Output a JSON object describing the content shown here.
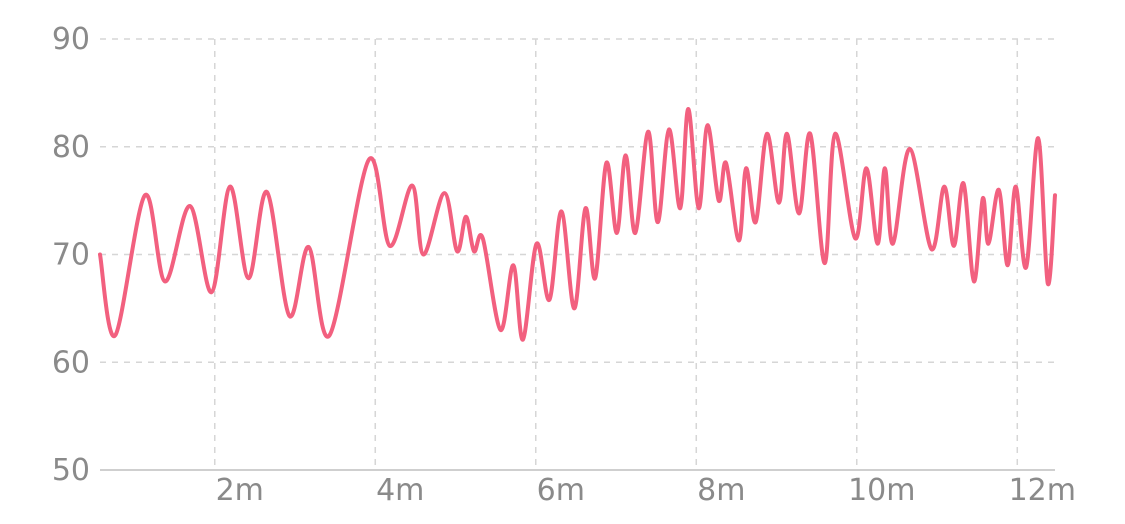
{
  "colors": {
    "series": "#f2607f",
    "grid": "#d6d6d6",
    "axis": "#cfcfcf",
    "tick_text": "#8a8a8a",
    "background": "#ffffff"
  },
  "chart_data": {
    "type": "line",
    "title": "",
    "xlabel": "",
    "ylabel": "",
    "x_unit": "minutes",
    "xlim": [
      0.57,
      12.47
    ],
    "ylim": [
      50,
      90
    ],
    "x_ticks": [
      {
        "value": 2,
        "label": "2m"
      },
      {
        "value": 4,
        "label": "4m"
      },
      {
        "value": 6,
        "label": "6m"
      },
      {
        "value": 8,
        "label": "8m"
      },
      {
        "value": 10,
        "label": "10m"
      },
      {
        "value": 12,
        "label": "12m"
      }
    ],
    "y_ticks": [
      {
        "value": 50,
        "label": "50"
      },
      {
        "value": 60,
        "label": "60"
      },
      {
        "value": 70,
        "label": "70"
      },
      {
        "value": 80,
        "label": "80"
      },
      {
        "value": 90,
        "label": "90"
      }
    ],
    "grid": true,
    "legend": "none",
    "series": [
      {
        "color": "#f2607f",
        "points": [
          [
            0.57,
            70.0
          ],
          [
            0.76,
            62.5
          ],
          [
            1.13,
            75.5
          ],
          [
            1.38,
            67.5
          ],
          [
            1.69,
            74.5
          ],
          [
            1.96,
            66.5
          ],
          [
            2.19,
            76.3
          ],
          [
            2.42,
            67.8
          ],
          [
            2.65,
            75.8
          ],
          [
            2.93,
            64.3
          ],
          [
            3.17,
            70.7
          ],
          [
            3.43,
            62.5
          ],
          [
            3.92,
            78.8
          ],
          [
            4.18,
            70.8
          ],
          [
            4.46,
            76.4
          ],
          [
            4.6,
            70.0
          ],
          [
            4.86,
            75.7
          ],
          [
            5.02,
            70.3
          ],
          [
            5.13,
            73.5
          ],
          [
            5.23,
            70.3
          ],
          [
            5.34,
            71.5
          ],
          [
            5.56,
            63.0
          ],
          [
            5.72,
            69.0
          ],
          [
            5.84,
            62.1
          ],
          [
            6.01,
            71.0
          ],
          [
            6.17,
            65.8
          ],
          [
            6.32,
            74.0
          ],
          [
            6.48,
            65.0
          ],
          [
            6.62,
            74.3
          ],
          [
            6.74,
            67.8
          ],
          [
            6.88,
            78.5
          ],
          [
            7.01,
            72.0
          ],
          [
            7.12,
            79.2
          ],
          [
            7.24,
            72.0
          ],
          [
            7.4,
            81.4
          ],
          [
            7.52,
            73.0
          ],
          [
            7.66,
            81.6
          ],
          [
            7.8,
            74.3
          ],
          [
            7.9,
            83.5
          ],
          [
            8.03,
            74.3
          ],
          [
            8.14,
            82.0
          ],
          [
            8.28,
            75.0
          ],
          [
            8.37,
            78.5
          ],
          [
            8.53,
            71.3
          ],
          [
            8.62,
            78.0
          ],
          [
            8.74,
            73.0
          ],
          [
            8.88,
            81.2
          ],
          [
            9.03,
            74.8
          ],
          [
            9.13,
            81.2
          ],
          [
            9.28,
            73.8
          ],
          [
            9.42,
            81.2
          ],
          [
            9.6,
            69.2
          ],
          [
            9.73,
            81.2
          ],
          [
            9.98,
            71.5
          ],
          [
            10.12,
            78.0
          ],
          [
            10.26,
            71.0
          ],
          [
            10.35,
            78.0
          ],
          [
            10.45,
            71.0
          ],
          [
            10.66,
            79.8
          ],
          [
            10.93,
            70.5
          ],
          [
            11.09,
            76.3
          ],
          [
            11.21,
            70.8
          ],
          [
            11.33,
            76.6
          ],
          [
            11.46,
            67.5
          ],
          [
            11.57,
            75.2
          ],
          [
            11.64,
            71.0
          ],
          [
            11.77,
            76.0
          ],
          [
            11.88,
            69.0
          ],
          [
            11.98,
            76.3
          ],
          [
            12.11,
            68.8
          ],
          [
            12.26,
            80.8
          ],
          [
            12.38,
            67.3
          ],
          [
            12.47,
            75.5
          ]
        ]
      }
    ]
  }
}
